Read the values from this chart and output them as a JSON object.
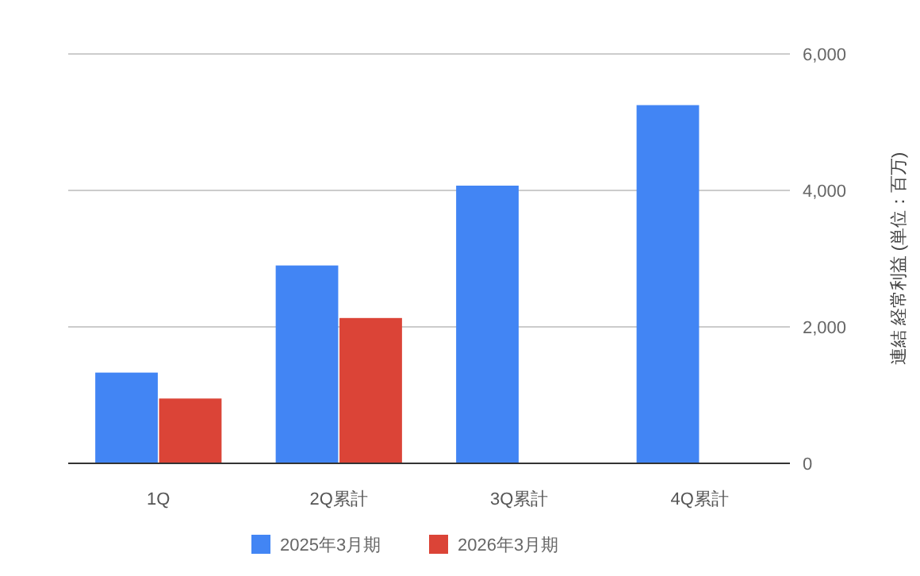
{
  "chart_data": {
    "type": "bar",
    "categories": [
      "1Q",
      "2Q累計",
      "3Q累計",
      "4Q累計"
    ],
    "series": [
      {
        "name": "2025年3月期",
        "color": "#4285f4",
        "values": [
          1330,
          2900,
          4070,
          5250
        ]
      },
      {
        "name": "2026年3月期",
        "color": "#db4437",
        "values": [
          950,
          2130,
          null,
          null
        ]
      }
    ],
    "ylabel": "連結 経常利益 (単位：百万)",
    "ylim": [
      0,
      6000
    ],
    "yticks": [
      0,
      {
        "value": 2000,
        "label": "2,000"
      },
      {
        "value": 4000,
        "label": "4,000"
      },
      {
        "value": 6000,
        "label": "6,000"
      }
    ],
    "grid": "y",
    "legend": "bottom"
  }
}
